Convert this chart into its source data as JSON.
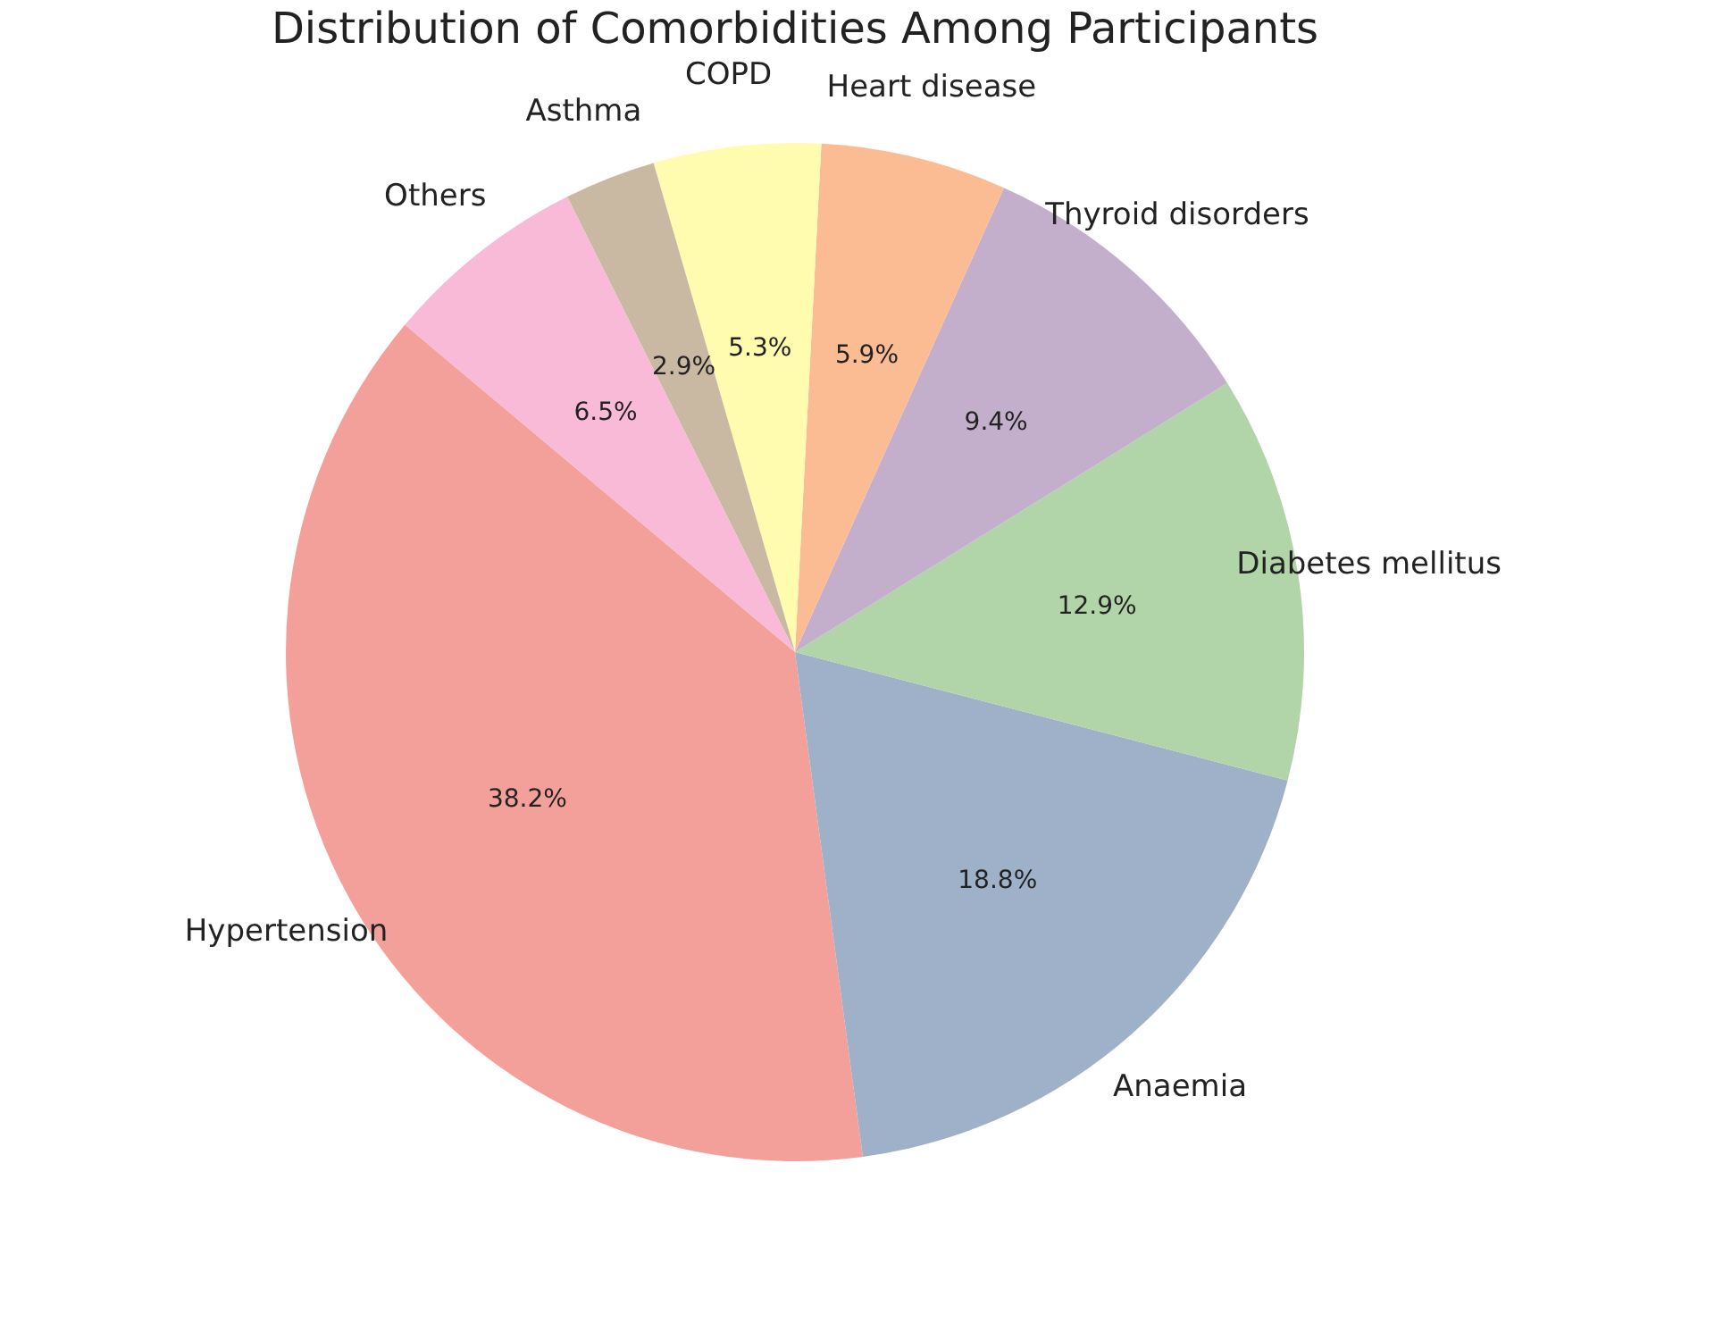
{
  "chart_data": {
    "type": "pie",
    "title": "Distribution of Comorbidities Among Participants",
    "categories": [
      "Hypertension",
      "Anaemia",
      "Diabetes mellitus",
      "Thyroid disorders",
      "Heart disease",
      "COPD",
      "Asthma",
      "Others"
    ],
    "values": [
      38.2,
      18.8,
      12.9,
      9.4,
      5.9,
      5.3,
      2.9,
      6.5
    ],
    "colors": [
      "#f4a09a",
      "#9fb1c9",
      "#b1d4a9",
      "#c3afcb",
      "#fbbc94",
      "#fffcb0",
      "#c9b8a2",
      "#f8bad6"
    ],
    "value_labels": [
      "38.2%",
      "18.8%",
      "12.9%",
      "9.4%",
      "5.9%",
      "5.3%",
      "2.9%",
      "6.5%"
    ]
  }
}
